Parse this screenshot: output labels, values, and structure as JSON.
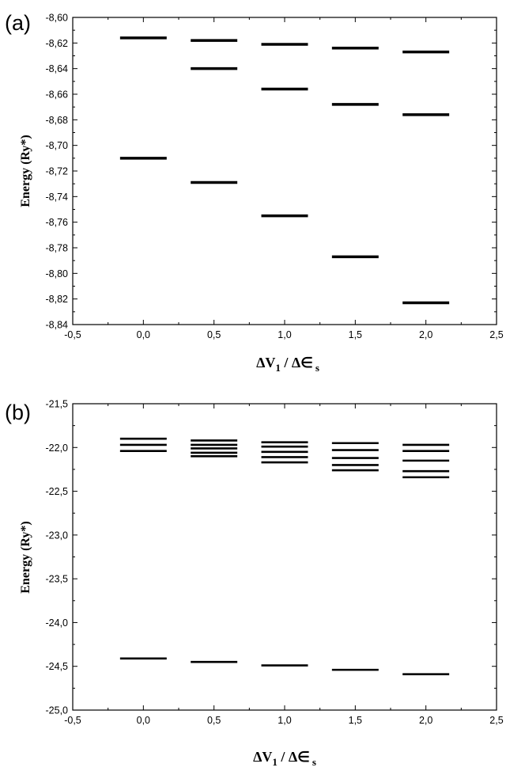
{
  "chart_data": [
    {
      "panel_label": "(a)",
      "type": "scatter",
      "mark": "horizontal-level",
      "xlabel_main": "ΔV",
      "xlabel_sub": "1",
      "xlabel_mid": " / Δ∈",
      "xlabel_sub2": "s",
      "ylabel": "Energy (Ry*)",
      "xlim": [
        -0.5,
        2.5
      ],
      "ylim": [
        -8.84,
        -8.6
      ],
      "x_ticks": [
        -0.5,
        0.0,
        0.5,
        1.0,
        1.5,
        2.0,
        2.5
      ],
      "x_tick_labels": [
        "-0,5",
        "0,0",
        "0,5",
        "1,0",
        "1,5",
        "2,0",
        "2,5"
      ],
      "y_ticks": [
        -8.6,
        -8.62,
        -8.64,
        -8.66,
        -8.68,
        -8.7,
        -8.72,
        -8.74,
        -8.76,
        -8.78,
        -8.8,
        -8.82,
        -8.84
      ],
      "y_tick_labels": [
        "-8,60",
        "-8,62",
        "-8,64",
        "-8,66",
        "-8,68",
        "-8,70",
        "-8,72",
        "-8,74",
        "-8,76",
        "-8,78",
        "-8,80",
        "-8,82",
        "-8,84"
      ],
      "level_half_width": 0.165,
      "series": [
        {
          "x": 0.0,
          "values": [
            -8.616,
            -8.71
          ]
        },
        {
          "x": 0.5,
          "values": [
            -8.618,
            -8.64,
            -8.729
          ]
        },
        {
          "x": 1.0,
          "values": [
            -8.621,
            -8.656,
            -8.755
          ]
        },
        {
          "x": 1.5,
          "values": [
            -8.624,
            -8.668,
            -8.787
          ]
        },
        {
          "x": 2.0,
          "values": [
            -8.627,
            -8.676,
            -8.823
          ]
        }
      ]
    },
    {
      "panel_label": "(b)",
      "type": "scatter",
      "mark": "horizontal-level",
      "xlabel_main": "ΔV",
      "xlabel_sub": "1",
      "xlabel_mid": " / Δ∈",
      "xlabel_sub2": "s",
      "ylabel": "Energy (Ry*)",
      "xlim": [
        -0.5,
        2.5
      ],
      "ylim": [
        -25.0,
        -21.5
      ],
      "x_ticks": [
        -0.5,
        0.0,
        0.5,
        1.0,
        1.5,
        2.0,
        2.5
      ],
      "x_tick_labels": [
        "-0,5",
        "0,0",
        "0,5",
        "1,0",
        "1,5",
        "2,0",
        "2,5"
      ],
      "y_ticks": [
        -21.5,
        -22.0,
        -22.5,
        -23.0,
        -23.5,
        -24.0,
        -24.5,
        -25.0
      ],
      "y_tick_labels": [
        "-21,5",
        "-22,0",
        "-22,5",
        "-23,0",
        "-23,5",
        "-24,0",
        "-24,5",
        "-25,0"
      ],
      "level_half_width": 0.165,
      "series": [
        {
          "x": 0.0,
          "values": [
            -21.9,
            -21.97,
            -22.04,
            -24.41
          ]
        },
        {
          "x": 0.5,
          "values": [
            -21.92,
            -21.97,
            -22.01,
            -22.06,
            -22.1,
            -24.45
          ]
        },
        {
          "x": 1.0,
          "values": [
            -21.94,
            -21.99,
            -22.05,
            -22.11,
            -22.17,
            -24.49
          ]
        },
        {
          "x": 1.5,
          "values": [
            -21.95,
            -22.03,
            -22.12,
            -22.2,
            -22.26,
            -24.54
          ]
        },
        {
          "x": 2.0,
          "values": [
            -21.97,
            -22.04,
            -22.15,
            -22.27,
            -22.34,
            -24.59
          ]
        }
      ]
    }
  ]
}
